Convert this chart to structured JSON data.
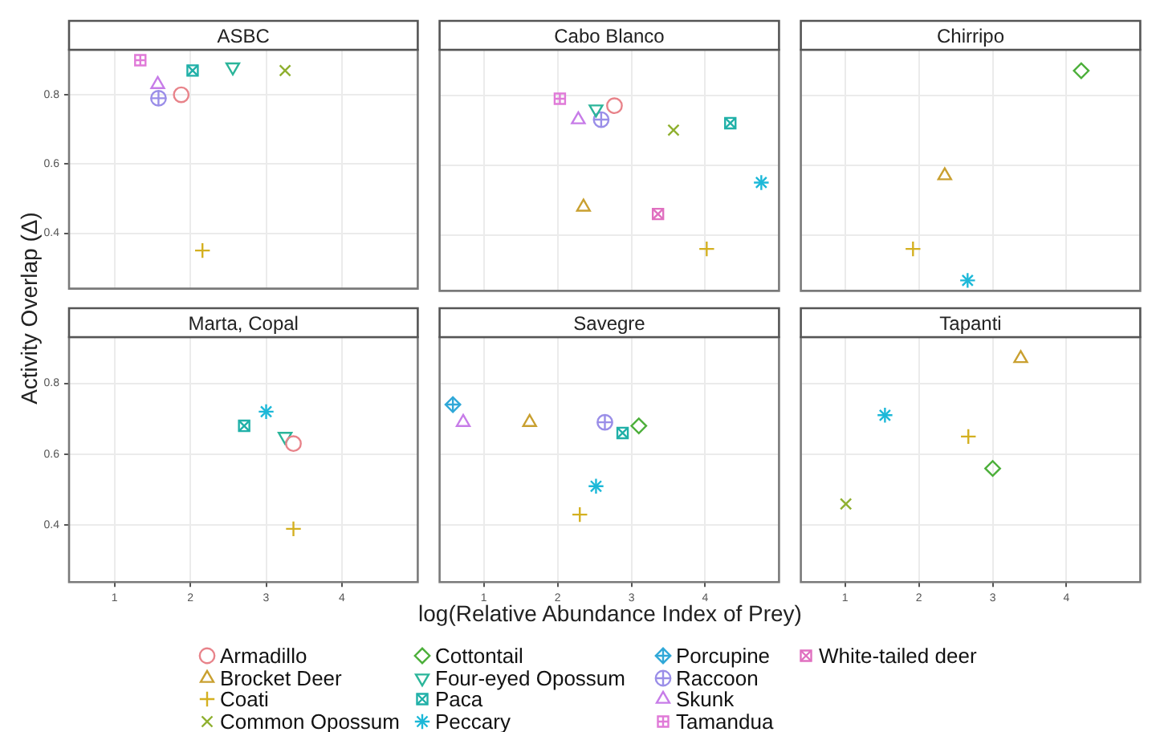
{
  "chart_data": [
    {
      "type": "scatter",
      "title": "ASBC",
      "ylabel": "Activity Overlap (Δ)",
      "xlim": [
        0.4,
        5.0
      ],
      "xticks": [
        1,
        2,
        3,
        4
      ],
      "ylim": [
        0.24,
        0.93
      ],
      "yticks": [
        0.4,
        0.6,
        0.8
      ],
      "grid": true,
      "legend": "bottom",
      "tick_labels": "y",
      "series": [
        {
          "name": "Armadillo",
          "color": "#e8838a",
          "marker": "circle",
          "x": [
            1.88
          ],
          "values": [
            0.8
          ]
        },
        {
          "name": "Coati",
          "color": "#d4b020",
          "marker": "cross",
          "x": [
            2.16
          ],
          "values": [
            0.35
          ]
        },
        {
          "name": "Common Opossum",
          "color": "#8fb030",
          "marker": "cross",
          "x": [
            3.25
          ],
          "values": [
            0.87
          ]
        },
        {
          "name": "Four-eyed Opossum",
          "color": "#2bb59a",
          "marker": "triangle",
          "x": [
            2.56
          ],
          "values": [
            0.88
          ]
        },
        {
          "name": "Paca",
          "color": "#20b0a8",
          "marker": "square",
          "x": [
            2.03
          ],
          "values": [
            0.87
          ]
        },
        {
          "name": "Raccoon",
          "color": "#9a8ee8",
          "marker": "circle",
          "x": [
            1.58
          ],
          "values": [
            0.79
          ]
        },
        {
          "name": "Skunk",
          "color": "#c77ce8",
          "marker": "triangle",
          "x": [
            1.57
          ],
          "values": [
            0.83
          ]
        },
        {
          "name": "Tamandua",
          "color": "#e07ad8",
          "marker": "square",
          "x": [
            1.34
          ],
          "values": [
            0.9
          ]
        }
      ]
    },
    {
      "type": "scatter",
      "title": "Cabo Blanco",
      "xlim": [
        0.4,
        5.0
      ],
      "xticks": [
        1,
        2,
        3,
        4
      ],
      "ylim": [
        0.24,
        0.93
      ],
      "yticks": [
        0.4,
        0.6,
        0.8
      ],
      "grid": true,
      "legend": "bottom",
      "tick_labels": false,
      "series": [
        {
          "name": "Armadillo",
          "color": "#e8838a",
          "marker": "circle",
          "x": [
            2.77
          ],
          "values": [
            0.77
          ]
        },
        {
          "name": "Brocket Deer",
          "color": "#c9a030",
          "marker": "triangle",
          "x": [
            2.35
          ],
          "values": [
            0.48
          ]
        },
        {
          "name": "Coati",
          "color": "#d4b020",
          "marker": "cross",
          "x": [
            4.02
          ],
          "values": [
            0.36
          ]
        },
        {
          "name": "Common Opossum",
          "color": "#8fb030",
          "marker": "cross",
          "x": [
            3.57
          ],
          "values": [
            0.7
          ]
        },
        {
          "name": "Four-eyed Opossum",
          "color": "#2bb59a",
          "marker": "triangle",
          "x": [
            2.52
          ],
          "values": [
            0.76
          ]
        },
        {
          "name": "Paca",
          "color": "#20b0a8",
          "marker": "square",
          "x": [
            4.34
          ],
          "values": [
            0.72
          ]
        },
        {
          "name": "Peccary",
          "color": "#1cb8d8",
          "marker": "cross",
          "x": [
            4.76
          ],
          "values": [
            0.55
          ]
        },
        {
          "name": "Raccoon",
          "color": "#9a8ee8",
          "marker": "circle",
          "x": [
            2.59
          ],
          "values": [
            0.73
          ]
        },
        {
          "name": "Skunk",
          "color": "#c77ce8",
          "marker": "triangle",
          "x": [
            2.28
          ],
          "values": [
            0.73
          ]
        },
        {
          "name": "Tamandua",
          "color": "#e07ad8",
          "marker": "square",
          "x": [
            2.03
          ],
          "values": [
            0.79
          ]
        },
        {
          "name": "White-tailed deer",
          "color": "#e070c0",
          "marker": "square",
          "x": [
            3.36
          ],
          "values": [
            0.46
          ]
        }
      ]
    },
    {
      "type": "scatter",
      "title": "Chirripo",
      "xlim": [
        0.4,
        5.0
      ],
      "xticks": [
        1,
        2,
        3,
        4
      ],
      "ylim": [
        0.24,
        0.93
      ],
      "yticks": [
        0.4,
        0.6,
        0.8
      ],
      "grid": true,
      "legend": "bottom",
      "tick_labels": false,
      "series": [
        {
          "name": "Brocket Deer",
          "color": "#c9a030",
          "marker": "triangle",
          "x": [
            2.35
          ],
          "values": [
            0.57
          ]
        },
        {
          "name": "Coati",
          "color": "#d4b020",
          "marker": "cross",
          "x": [
            1.92
          ],
          "values": [
            0.36
          ]
        },
        {
          "name": "Cottontail",
          "color": "#4caf3a",
          "marker": "diamond",
          "x": [
            4.2
          ],
          "values": [
            0.87
          ]
        },
        {
          "name": "Peccary",
          "color": "#1cb8d8",
          "marker": "cross",
          "x": [
            2.66
          ],
          "values": [
            0.27
          ]
        }
      ]
    },
    {
      "type": "scatter",
      "title": "Marta, Copal",
      "xlim": [
        0.4,
        5.0
      ],
      "xticks": [
        1,
        2,
        3,
        4
      ],
      "ylim": [
        0.24,
        0.93
      ],
      "yticks": [
        0.4,
        0.6,
        0.8
      ],
      "grid": true,
      "legend": "bottom",
      "series": [
        {
          "name": "Armadillo",
          "color": "#e8838a",
          "marker": "circle",
          "x": [
            3.36
          ],
          "values": [
            0.63
          ]
        },
        {
          "name": "Coati",
          "color": "#d4b020",
          "marker": "cross",
          "x": [
            3.36
          ],
          "values": [
            0.39
          ]
        },
        {
          "name": "Four-eyed Opossum",
          "color": "#2bb59a",
          "marker": "triangle",
          "x": [
            3.25
          ],
          "values": [
            0.65
          ]
        },
        {
          "name": "Paca",
          "color": "#20b0a8",
          "marker": "square",
          "x": [
            2.71
          ],
          "values": [
            0.68
          ]
        },
        {
          "name": "Peccary",
          "color": "#1cb8d8",
          "marker": "cross",
          "x": [
            3.0
          ],
          "values": [
            0.72
          ]
        }
      ]
    },
    {
      "type": "scatter",
      "title": "Savegre",
      "xlabel": "log(Relative Abundance Index of Prey)",
      "xlim": [
        0.4,
        5.0
      ],
      "xticks": [
        1,
        2,
        3,
        4
      ],
      "ylim": [
        0.24,
        0.93
      ],
      "yticks": [
        0.4,
        0.6,
        0.8
      ],
      "grid": true,
      "legend": "bottom",
      "tick_labels": "x",
      "series": [
        {
          "name": "Brocket Deer",
          "color": "#c9a030",
          "marker": "triangle",
          "x": [
            1.62
          ],
          "values": [
            0.69
          ]
        },
        {
          "name": "Coati",
          "color": "#d4b020",
          "marker": "cross",
          "x": [
            2.3
          ],
          "values": [
            0.43
          ]
        },
        {
          "name": "Cottontail",
          "color": "#4caf3a",
          "marker": "diamond",
          "x": [
            3.1
          ],
          "values": [
            0.68
          ]
        },
        {
          "name": "Paca",
          "color": "#20b0a8",
          "marker": "square",
          "x": [
            2.88
          ],
          "values": [
            0.66
          ]
        },
        {
          "name": "Peccary",
          "color": "#1cb8d8",
          "marker": "cross",
          "x": [
            2.52
          ],
          "values": [
            0.51
          ]
        },
        {
          "name": "Porcupine",
          "color": "#30a8d8",
          "marker": "diamond",
          "x": [
            0.58
          ],
          "values": [
            0.74
          ]
        },
        {
          "name": "Raccoon",
          "color": "#9a8ee8",
          "marker": "circle",
          "x": [
            2.64
          ],
          "values": [
            0.69
          ]
        },
        {
          "name": "Skunk",
          "color": "#c77ce8",
          "marker": "triangle",
          "x": [
            0.72
          ],
          "values": [
            0.69
          ]
        }
      ]
    },
    {
      "type": "scatter",
      "title": "Tapanti",
      "xlim": [
        0.4,
        5.0
      ],
      "xticks": [
        1,
        2,
        3,
        4
      ],
      "ylim": [
        0.24,
        0.93
      ],
      "yticks": [
        0.4,
        0.6,
        0.8
      ],
      "grid": true,
      "legend": "bottom",
      "tick_labels": "x",
      "series": [
        {
          "name": "Brocket Deer",
          "color": "#c9a030",
          "marker": "triangle",
          "x": [
            3.38
          ],
          "values": [
            0.87
          ]
        },
        {
          "name": "Coati",
          "color": "#d4b020",
          "marker": "cross",
          "x": [
            2.67
          ],
          "values": [
            0.65
          ]
        },
        {
          "name": "Common Opossum",
          "color": "#8fb030",
          "marker": "cross",
          "x": [
            1.01
          ],
          "values": [
            0.46
          ]
        },
        {
          "name": "Cottontail",
          "color": "#4caf3a",
          "marker": "diamond",
          "x": [
            3.0
          ],
          "values": [
            0.56
          ]
        },
        {
          "name": "Peccary",
          "color": "#1cb8d8",
          "marker": "cross",
          "x": [
            1.54
          ],
          "values": [
            0.71
          ]
        }
      ]
    }
  ]
}
